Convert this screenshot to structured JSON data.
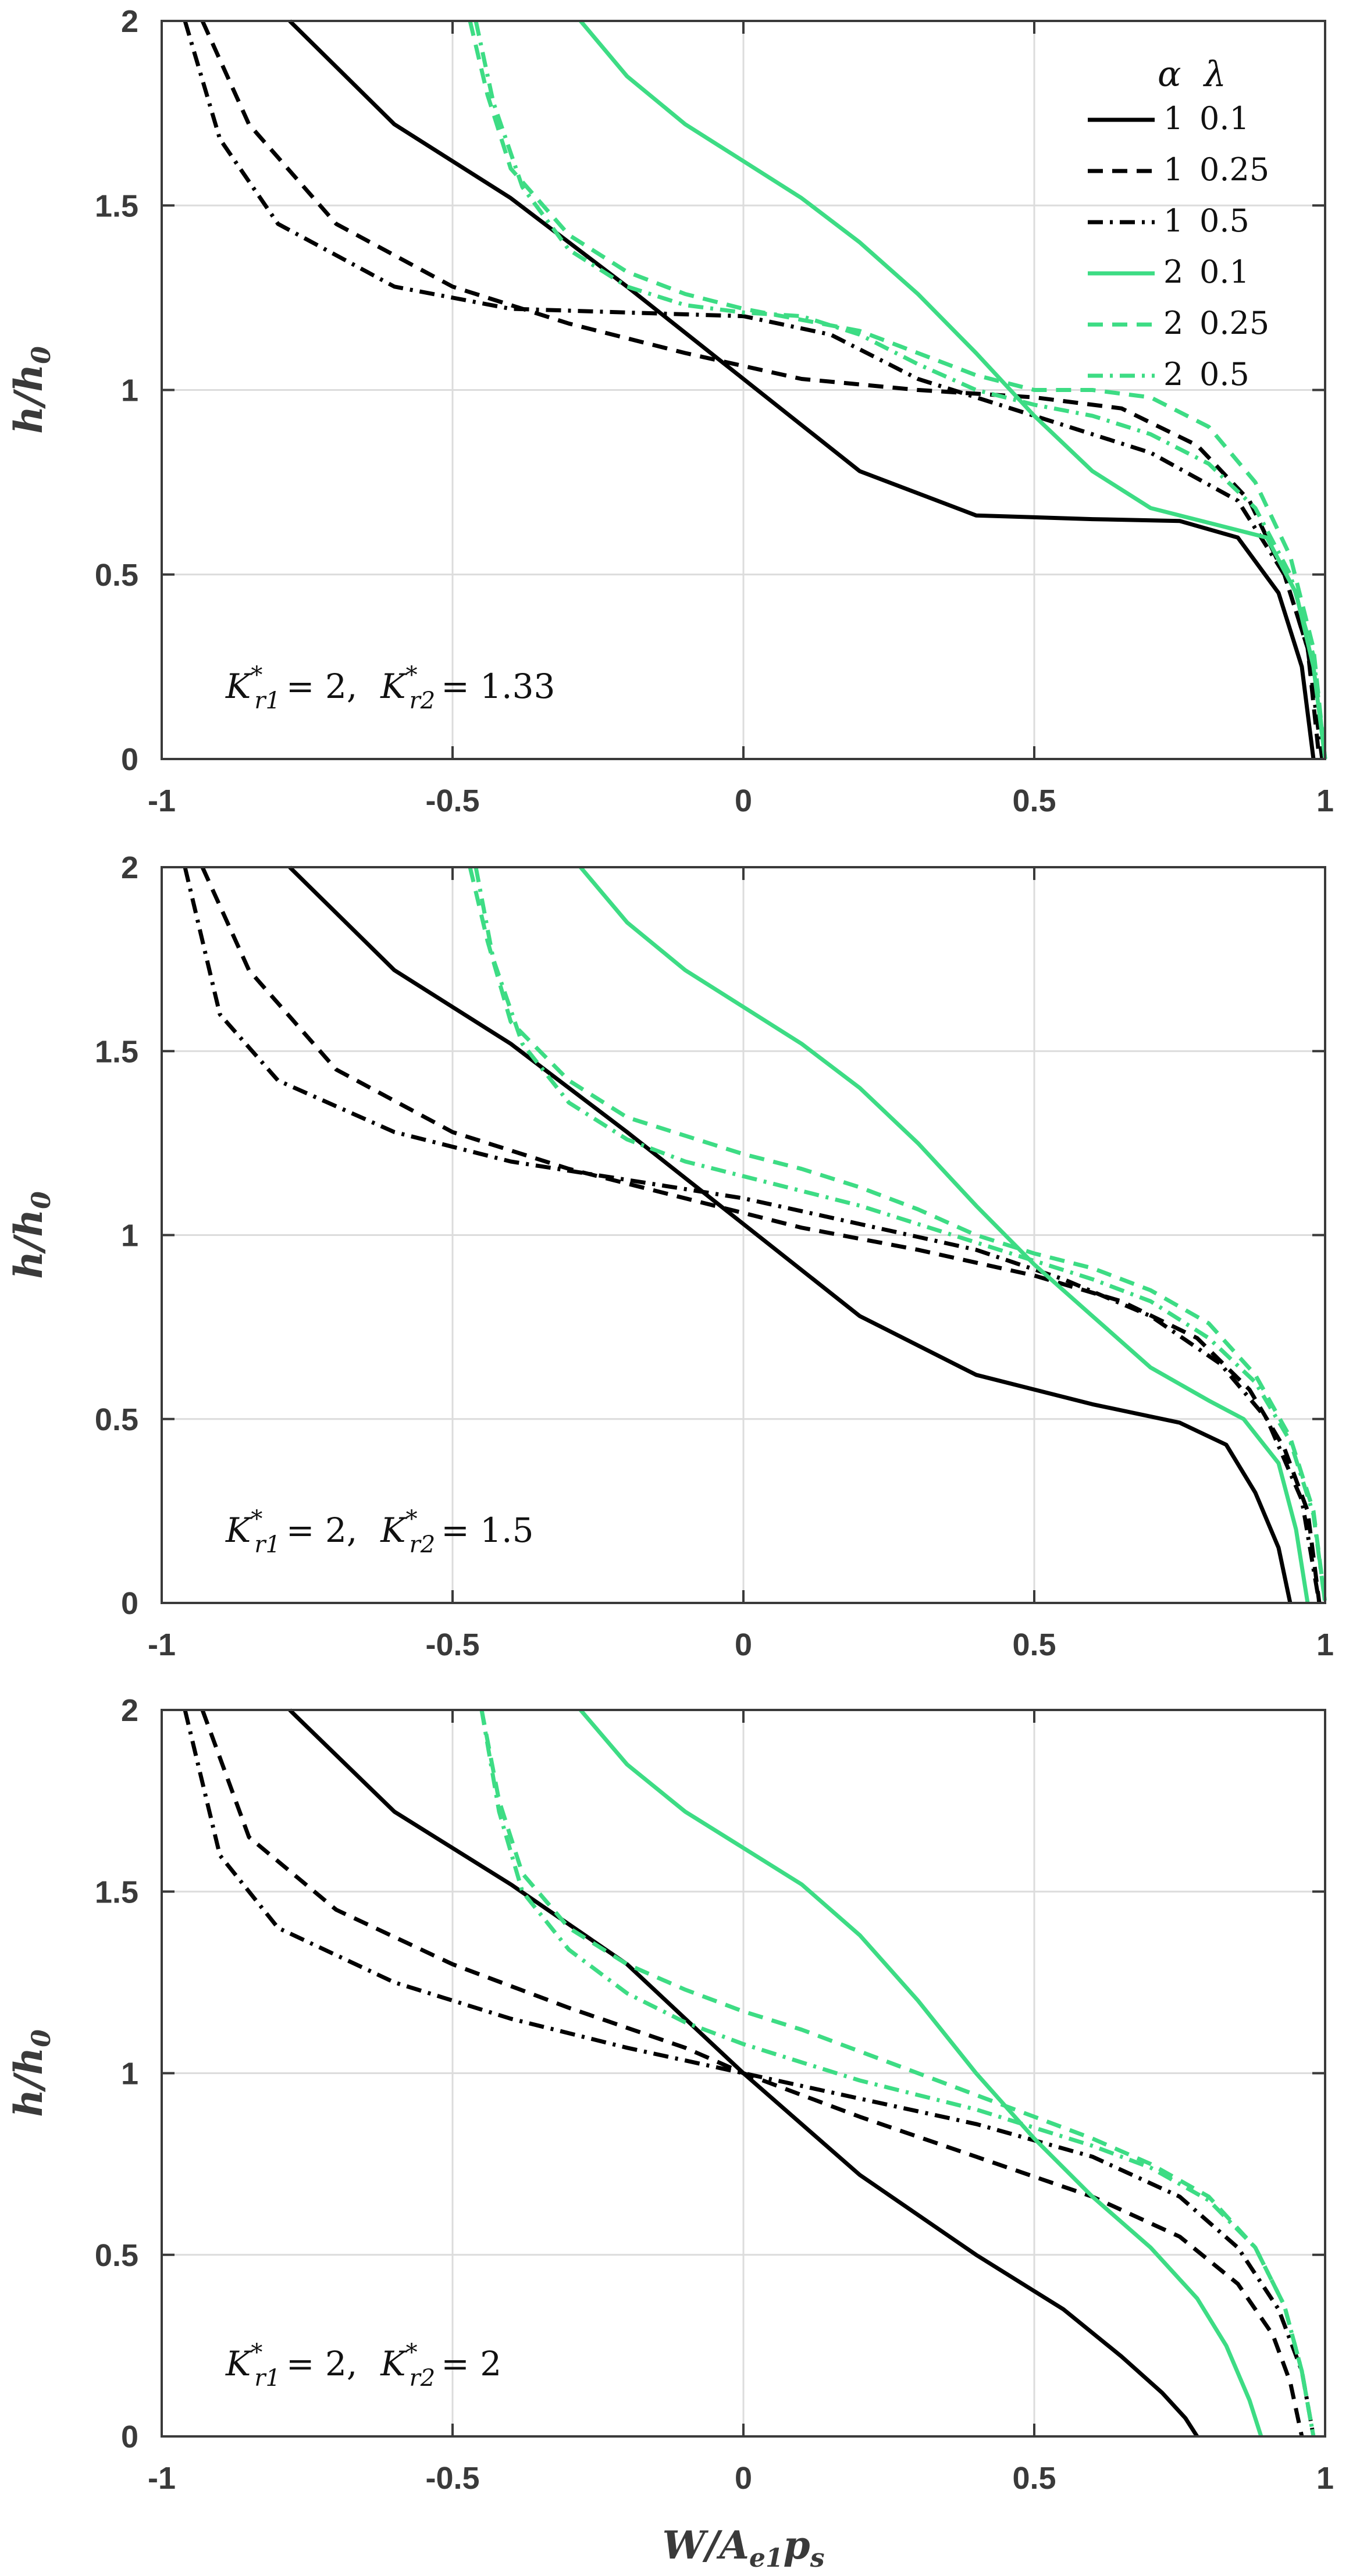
{
  "colors": {
    "alpha1": "#000000",
    "alpha2": "#3ddc84",
    "grid": "#dcdcdc",
    "axis": "#3a3a3a"
  },
  "legend": {
    "header_alpha": "α",
    "header_lambda": "λ",
    "entries": [
      {
        "alpha": "1",
        "lambda": "0.1",
        "style": "solid",
        "color": "#000000"
      },
      {
        "alpha": "1",
        "lambda": "0.25",
        "style": "dashed",
        "color": "#000000"
      },
      {
        "alpha": "1",
        "lambda": "0.5",
        "style": "dashdot",
        "color": "#000000"
      },
      {
        "alpha": "2",
        "lambda": "0.1",
        "style": "solid",
        "color": "#3ddc84"
      },
      {
        "alpha": "2",
        "lambda": "0.25",
        "style": "dashed",
        "color": "#3ddc84"
      },
      {
        "alpha": "2",
        "lambda": "0.5",
        "style": "dashdot",
        "color": "#3ddc84"
      }
    ]
  },
  "chart_data": [
    {
      "type": "line",
      "annotation": "K*r1 = 2,  K*r2 = 1.33",
      "ylabel": "h/h0",
      "xlim": [
        -1,
        1
      ],
      "ylim": [
        0,
        2
      ],
      "xticks": [
        -1,
        -0.5,
        0,
        0.5,
        1
      ],
      "xtick_labels": [
        "-1",
        "-0.5",
        "0",
        "0.5",
        "1"
      ],
      "yticks": [
        0,
        0.5,
        1,
        1.5,
        2
      ],
      "ytick_labels": [
        "0",
        "0.5",
        "1",
        "1.5",
        "2"
      ],
      "series": [
        {
          "name": "α=1 λ=0.1",
          "x": [
            -0.78,
            -0.6,
            -0.4,
            -0.2,
            0,
            0.2,
            0.4,
            0.6,
            0.75,
            0.85,
            0.92,
            0.96,
            0.98
          ],
          "y": [
            2.0,
            1.72,
            1.52,
            1.28,
            1.03,
            0.78,
            0.66,
            0.65,
            0.645,
            0.6,
            0.45,
            0.25,
            0.0
          ]
        },
        {
          "name": "α=1 λ=0.25",
          "x": [
            -0.93,
            -0.85,
            -0.7,
            -0.5,
            -0.3,
            -0.1,
            0.1,
            0.3,
            0.5,
            0.65,
            0.78,
            0.87,
            0.93,
            0.97,
            0.99
          ],
          "y": [
            2.0,
            1.72,
            1.45,
            1.28,
            1.18,
            1.1,
            1.03,
            1.0,
            0.98,
            0.95,
            0.85,
            0.7,
            0.5,
            0.3,
            0.0
          ]
        },
        {
          "name": "α=1 λ=0.5",
          "x": [
            -0.96,
            -0.9,
            -0.8,
            -0.6,
            -0.4,
            -0.2,
            0,
            0.15,
            0.3,
            0.5,
            0.7,
            0.85,
            0.93,
            0.97,
            0.995
          ],
          "y": [
            2.0,
            1.68,
            1.45,
            1.28,
            1.22,
            1.21,
            1.2,
            1.15,
            1.03,
            0.93,
            0.83,
            0.7,
            0.5,
            0.3,
            0.0
          ]
        },
        {
          "name": "α=2 λ=0.1",
          "x": [
            -0.28,
            -0.2,
            -0.1,
            0,
            0.1,
            0.2,
            0.3,
            0.4,
            0.5,
            0.6,
            0.7,
            0.8,
            0.9,
            0.95,
            0.98,
            1.0
          ],
          "y": [
            2.0,
            1.85,
            1.72,
            1.62,
            1.52,
            1.4,
            1.26,
            1.1,
            0.93,
            0.78,
            0.68,
            0.64,
            0.6,
            0.45,
            0.25,
            0.0
          ]
        },
        {
          "name": "α=2 λ=0.25",
          "x": [
            -0.47,
            -0.44,
            -0.4,
            -0.3,
            -0.2,
            -0.1,
            0,
            0.1,
            0.2,
            0.3,
            0.4,
            0.5,
            0.6,
            0.7,
            0.8,
            0.88,
            0.94,
            0.98,
            1.0
          ],
          "y": [
            2.0,
            1.8,
            1.6,
            1.42,
            1.32,
            1.26,
            1.22,
            1.19,
            1.16,
            1.1,
            1.04,
            1.0,
            1.0,
            0.98,
            0.9,
            0.75,
            0.55,
            0.3,
            0.0
          ]
        },
        {
          "name": "α=2 λ=0.5",
          "x": [
            -0.46,
            -0.43,
            -0.38,
            -0.3,
            -0.2,
            -0.1,
            0,
            0.1,
            0.2,
            0.3,
            0.4,
            0.5,
            0.6,
            0.7,
            0.8,
            0.88,
            0.94,
            0.98,
            1.0
          ],
          "y": [
            2.0,
            1.78,
            1.55,
            1.38,
            1.28,
            1.23,
            1.21,
            1.2,
            1.15,
            1.07,
            1.0,
            0.96,
            0.93,
            0.88,
            0.8,
            0.68,
            0.5,
            0.28,
            0.0
          ]
        }
      ]
    },
    {
      "type": "line",
      "annotation": "K*r1 = 2,  K*r2 = 1.5",
      "ylabel": "h/h0",
      "xlim": [
        -1,
        1
      ],
      "ylim": [
        0,
        2
      ],
      "xticks": [
        -1,
        -0.5,
        0,
        0.5,
        1
      ],
      "xtick_labels": [
        "-1",
        "-0.5",
        "0",
        "0.5",
        "1"
      ],
      "yticks": [
        0,
        0.5,
        1,
        1.5,
        2
      ],
      "ytick_labels": [
        "0",
        "0.5",
        "1",
        "1.5",
        "2"
      ],
      "series": [
        {
          "name": "α=1 λ=0.1",
          "x": [
            -0.78,
            -0.6,
            -0.4,
            -0.2,
            0,
            0.2,
            0.4,
            0.6,
            0.75,
            0.83,
            0.88,
            0.92,
            0.94
          ],
          "y": [
            2.0,
            1.72,
            1.52,
            1.28,
            1.03,
            0.78,
            0.62,
            0.54,
            0.49,
            0.43,
            0.3,
            0.15,
            0.0
          ]
        },
        {
          "name": "α=1 λ=0.25",
          "x": [
            -0.93,
            -0.85,
            -0.7,
            -0.5,
            -0.3,
            -0.1,
            0.1,
            0.3,
            0.5,
            0.65,
            0.78,
            0.87,
            0.93,
            0.97,
            0.99
          ],
          "y": [
            2.0,
            1.72,
            1.45,
            1.28,
            1.18,
            1.1,
            1.02,
            0.96,
            0.89,
            0.82,
            0.72,
            0.58,
            0.42,
            0.25,
            0.0
          ]
        },
        {
          "name": "α=1 λ=0.5",
          "x": [
            -0.96,
            -0.9,
            -0.8,
            -0.6,
            -0.4,
            -0.2,
            0,
            0.2,
            0.4,
            0.55,
            0.7,
            0.82,
            0.9,
            0.96,
            0.99
          ],
          "y": [
            2.0,
            1.6,
            1.42,
            1.28,
            1.2,
            1.15,
            1.1,
            1.03,
            0.96,
            0.88,
            0.78,
            0.65,
            0.5,
            0.28,
            0.0
          ]
        },
        {
          "name": "α=2 λ=0.1",
          "x": [
            -0.28,
            -0.2,
            -0.1,
            0,
            0.1,
            0.2,
            0.3,
            0.4,
            0.5,
            0.6,
            0.7,
            0.8,
            0.86,
            0.92,
            0.95,
            0.97
          ],
          "y": [
            2.0,
            1.85,
            1.72,
            1.62,
            1.52,
            1.4,
            1.25,
            1.08,
            0.92,
            0.78,
            0.64,
            0.55,
            0.5,
            0.38,
            0.2,
            0.0
          ]
        },
        {
          "name": "α=2 λ=0.25",
          "x": [
            -0.47,
            -0.44,
            -0.4,
            -0.3,
            -0.2,
            -0.1,
            0,
            0.1,
            0.2,
            0.3,
            0.4,
            0.5,
            0.6,
            0.7,
            0.8,
            0.88,
            0.94,
            0.98,
            1.0
          ],
          "y": [
            2.0,
            1.8,
            1.58,
            1.42,
            1.32,
            1.27,
            1.22,
            1.18,
            1.13,
            1.07,
            1.0,
            0.95,
            0.91,
            0.85,
            0.76,
            0.62,
            0.45,
            0.25,
            0.0
          ]
        },
        {
          "name": "α=2 λ=0.5",
          "x": [
            -0.46,
            -0.43,
            -0.38,
            -0.3,
            -0.2,
            -0.1,
            0,
            0.1,
            0.2,
            0.3,
            0.4,
            0.5,
            0.6,
            0.7,
            0.8,
            0.88,
            0.94,
            0.98,
            1.0
          ],
          "y": [
            2.0,
            1.75,
            1.52,
            1.36,
            1.26,
            1.2,
            1.16,
            1.12,
            1.08,
            1.03,
            0.98,
            0.93,
            0.88,
            0.82,
            0.72,
            0.6,
            0.44,
            0.24,
            0.0
          ]
        }
      ]
    },
    {
      "type": "line",
      "annotation": "K*r1 = 2,  K*r2 = 2",
      "ylabel": "h/h0",
      "xlabel": "W/Ae1ps",
      "xlim": [
        -1,
        1
      ],
      "ylim": [
        0,
        2
      ],
      "xticks": [
        -1,
        -0.5,
        0,
        0.5,
        1
      ],
      "xtick_labels": [
        "-1",
        "-0.5",
        "0",
        "0.5",
        "1"
      ],
      "yticks": [
        0,
        0.5,
        1,
        1.5,
        2
      ],
      "ytick_labels": [
        "0",
        "0.5",
        "1",
        "1.5",
        "2"
      ],
      "series": [
        {
          "name": "α=1 λ=0.1",
          "x": [
            -0.78,
            -0.6,
            -0.4,
            -0.2,
            0,
            0.2,
            0.4,
            0.55,
            0.65,
            0.72,
            0.76,
            0.78
          ],
          "y": [
            2.0,
            1.72,
            1.52,
            1.3,
            1.0,
            0.72,
            0.5,
            0.35,
            0.22,
            0.12,
            0.05,
            0.0
          ]
        },
        {
          "name": "α=1 λ=0.25",
          "x": [
            -0.93,
            -0.85,
            -0.7,
            -0.5,
            -0.3,
            -0.1,
            0,
            0.2,
            0.4,
            0.6,
            0.75,
            0.85,
            0.91,
            0.94,
            0.96
          ],
          "y": [
            2.0,
            1.65,
            1.45,
            1.3,
            1.18,
            1.07,
            1.0,
            0.88,
            0.77,
            0.66,
            0.55,
            0.42,
            0.28,
            0.15,
            0.0
          ]
        },
        {
          "name": "α=1 λ=0.5",
          "x": [
            -0.96,
            -0.9,
            -0.8,
            -0.6,
            -0.4,
            -0.2,
            0,
            0.2,
            0.4,
            0.6,
            0.75,
            0.85,
            0.92,
            0.96,
            0.98
          ],
          "y": [
            2.0,
            1.6,
            1.4,
            1.25,
            1.15,
            1.07,
            1.0,
            0.93,
            0.86,
            0.77,
            0.66,
            0.52,
            0.35,
            0.18,
            0.0
          ]
        },
        {
          "name": "α=2 λ=0.1",
          "x": [
            -0.28,
            -0.2,
            -0.1,
            0,
            0.1,
            0.2,
            0.3,
            0.4,
            0.5,
            0.6,
            0.7,
            0.78,
            0.83,
            0.87,
            0.89
          ],
          "y": [
            2.0,
            1.85,
            1.72,
            1.62,
            1.52,
            1.38,
            1.2,
            1.0,
            0.82,
            0.66,
            0.52,
            0.38,
            0.25,
            0.1,
            0.0
          ]
        },
        {
          "name": "α=2 λ=0.25",
          "x": [
            -0.45,
            -0.42,
            -0.38,
            -0.3,
            -0.2,
            -0.1,
            0,
            0.1,
            0.2,
            0.3,
            0.4,
            0.5,
            0.6,
            0.7,
            0.8,
            0.88,
            0.93,
            0.96,
            0.98
          ],
          "y": [
            2.0,
            1.75,
            1.55,
            1.4,
            1.3,
            1.23,
            1.17,
            1.12,
            1.06,
            1.0,
            0.94,
            0.88,
            0.82,
            0.75,
            0.66,
            0.52,
            0.36,
            0.18,
            0.0
          ]
        },
        {
          "name": "α=2 λ=0.5",
          "x": [
            -0.45,
            -0.42,
            -0.38,
            -0.3,
            -0.2,
            -0.1,
            0,
            0.1,
            0.2,
            0.3,
            0.4,
            0.5,
            0.6,
            0.7,
            0.8,
            0.88,
            0.93,
            0.96,
            0.98
          ],
          "y": [
            2.0,
            1.72,
            1.5,
            1.34,
            1.22,
            1.14,
            1.08,
            1.03,
            0.98,
            0.94,
            0.9,
            0.85,
            0.8,
            0.74,
            0.65,
            0.52,
            0.36,
            0.18,
            0.0
          ]
        }
      ]
    }
  ]
}
